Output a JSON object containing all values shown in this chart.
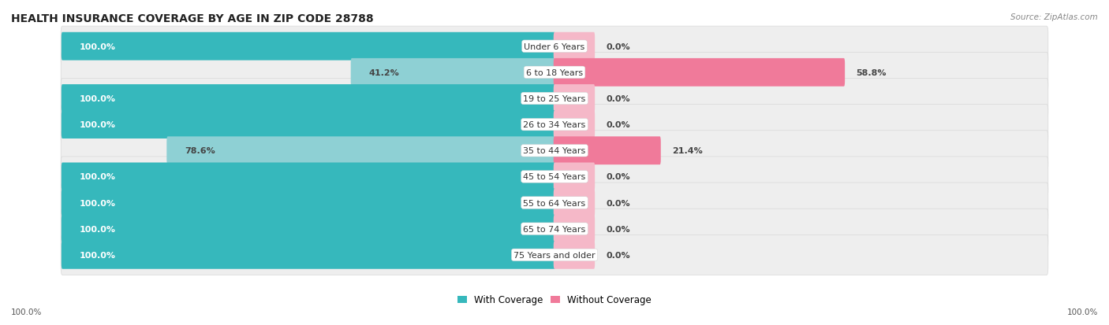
{
  "title": "HEALTH INSURANCE COVERAGE BY AGE IN ZIP CODE 28788",
  "source": "Source: ZipAtlas.com",
  "categories": [
    "Under 6 Years",
    "6 to 18 Years",
    "19 to 25 Years",
    "26 to 34 Years",
    "35 to 44 Years",
    "45 to 54 Years",
    "55 to 64 Years",
    "65 to 74 Years",
    "75 Years and older"
  ],
  "with_coverage": [
    100.0,
    41.2,
    100.0,
    100.0,
    78.6,
    100.0,
    100.0,
    100.0,
    100.0
  ],
  "without_coverage": [
    0.0,
    58.8,
    0.0,
    0.0,
    21.4,
    0.0,
    0.0,
    0.0,
    0.0
  ],
  "color_with": "#36b8bc",
  "color_without": "#f07a9a",
  "color_with_light": "#8ed0d4",
  "color_without_light": "#f5b8c8",
  "row_bg_dark": "#e8e8e8",
  "row_bg_light": "#f0f0f0",
  "title_fontsize": 10,
  "label_fontsize": 8,
  "value_fontsize": 8,
  "legend_fontsize": 8.5,
  "footer_fontsize": 7.5
}
